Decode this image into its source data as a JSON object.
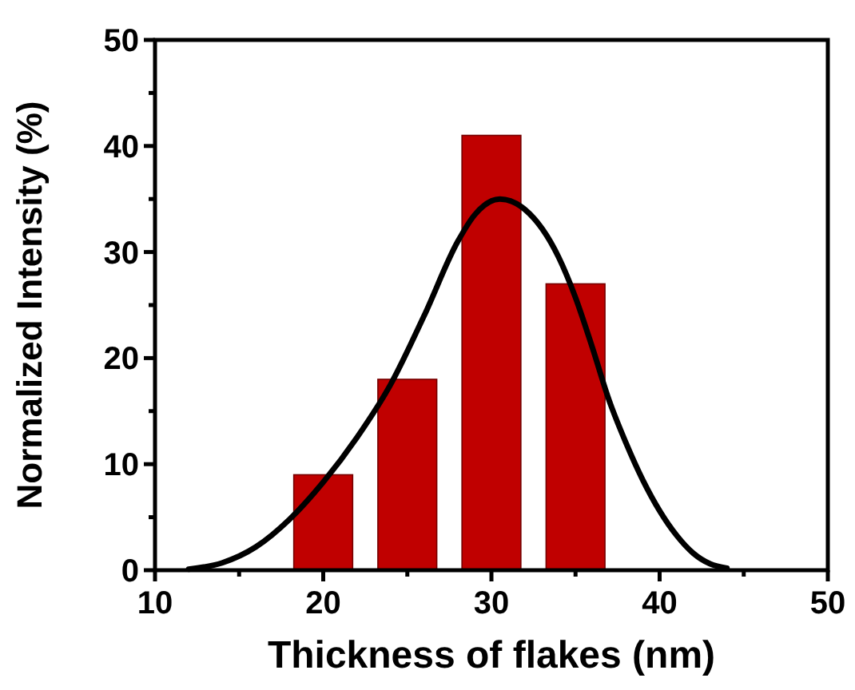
{
  "chart_data": {
    "type": "bar",
    "xlabel": "Thickness of flakes (nm)",
    "ylabel": "Normalized Intensity (%)",
    "xlim": [
      10,
      50
    ],
    "ylim": [
      0,
      50
    ],
    "xticks": [
      10,
      {
        "value": 15,
        "label": null
      },
      20,
      {
        "value": 25,
        "label": null
      },
      30,
      {
        "value": 35,
        "label": null
      },
      40,
      {
        "value": 45,
        "label": null
      },
      50
    ],
    "yticks": [
      0,
      {
        "value": 5,
        "label": null
      },
      10,
      {
        "value": 15,
        "label": null
      },
      20,
      {
        "value": 25,
        "label": null
      },
      30,
      {
        "value": 35,
        "label": null
      },
      40,
      {
        "value": 45,
        "label": null
      },
      50
    ],
    "grid": false,
    "series": [
      {
        "color": "#c00000",
        "x": [
          20,
          25,
          30,
          35
        ],
        "values": [
          9,
          18,
          41,
          27
        ]
      },
      {
        "type": "line",
        "color": "#000000",
        "marker": "none",
        "line_style": "solid",
        "x": [
          12,
          14,
          16,
          18,
          20,
          22,
          24,
          26,
          28,
          29,
          30.5,
          32,
          34,
          35,
          36,
          37,
          38,
          39,
          40,
          41,
          42,
          43,
          44
        ],
        "values": [
          0.1,
          0.7,
          2.2,
          4.8,
          8.3,
          12.5,
          17.5,
          24,
          31,
          33.5,
          35,
          34,
          29.5,
          25.7,
          21,
          16,
          12,
          8.5,
          5.6,
          3.3,
          1.6,
          0.6,
          0.2
        ]
      }
    ]
  }
}
